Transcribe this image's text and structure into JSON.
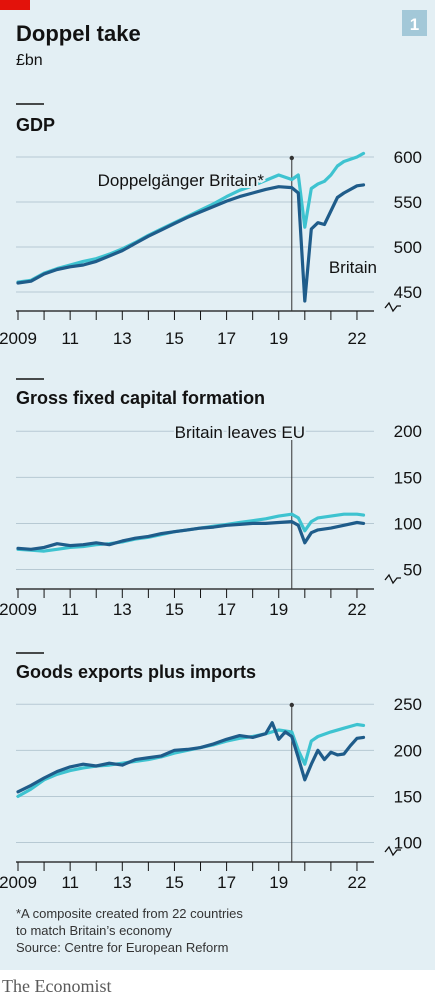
{
  "header": {
    "title": "Doppel take",
    "subtitle": "£bn",
    "chart_number": "1"
  },
  "footnote": {
    "line1": "*A composite created from 22 countries",
    "line2": "to match Britain’s economy",
    "source": "Source: Centre for European Reform"
  },
  "brand": "The Economist",
  "colors": {
    "background": "#e3eff4",
    "britain": "#1f5c8a",
    "doppelganger": "#3ec3d0",
    "grid": "#b7c9d3",
    "accent_red": "#e3120b",
    "number_box": "#a3c8d8"
  },
  "x_ticks": [
    "2009",
    "11",
    "13",
    "15",
    "17",
    "19",
    "22"
  ],
  "chart_data": [
    {
      "type": "line",
      "title": "GDP",
      "x_unit": "year (quarterly)",
      "xlim": [
        2009.0,
        2022.5
      ],
      "ylim": [
        430,
        610
      ],
      "y_ticks": [
        450,
        500,
        550,
        600
      ],
      "y_axis_break": true,
      "annotations": [
        "Doppelgänger Britain*",
        "Britain"
      ],
      "series": [
        {
          "name": "Britain",
          "x": [
            2009.0,
            2009.5,
            2010.0,
            2010.5,
            2011.0,
            2011.5,
            2012.0,
            2012.5,
            2013.0,
            2013.5,
            2014.0,
            2014.5,
            2015.0,
            2015.5,
            2016.0,
            2016.5,
            2017.0,
            2017.5,
            2018.0,
            2018.5,
            2019.0,
            2019.5,
            2019.75,
            2020.0,
            2020.25,
            2020.5,
            2020.75,
            2021.0,
            2021.25,
            2021.5,
            2022.0,
            2022.25
          ],
          "y": [
            460,
            462,
            470,
            475,
            478,
            480,
            484,
            490,
            496,
            504,
            512,
            519,
            526,
            533,
            539,
            545,
            551,
            556,
            560,
            564,
            567,
            566,
            560,
            440,
            520,
            527,
            525,
            540,
            555,
            560,
            568,
            569
          ]
        },
        {
          "name": "Doppelgänger Britain*",
          "x": [
            2009.0,
            2009.5,
            2010.0,
            2010.5,
            2011.0,
            2011.5,
            2012.0,
            2012.5,
            2013.0,
            2013.5,
            2014.0,
            2014.5,
            2015.0,
            2015.5,
            2016.0,
            2016.5,
            2017.0,
            2017.5,
            2018.0,
            2018.5,
            2019.0,
            2019.5,
            2019.75,
            2020.0,
            2020.25,
            2020.5,
            2020.75,
            2021.0,
            2021.25,
            2021.5,
            2022.0,
            2022.25
          ],
          "y": [
            461,
            463,
            471,
            476,
            480,
            484,
            487,
            492,
            498,
            505,
            513,
            520,
            527,
            534,
            541,
            548,
            556,
            563,
            568,
            574,
            580,
            575,
            580,
            522,
            565,
            570,
            573,
            580,
            590,
            595,
            600,
            604
          ]
        }
      ]
    },
    {
      "type": "line",
      "title": "Gross fixed capital formation",
      "x_unit": "year (quarterly)",
      "xlim": [
        2009.0,
        2022.5
      ],
      "ylim": [
        30,
        210
      ],
      "y_ticks": [
        50,
        100,
        150,
        200
      ],
      "y_axis_break": true,
      "annotations": [
        "Britain leaves EU"
      ],
      "series": [
        {
          "name": "Britain",
          "x": [
            2009.0,
            2009.5,
            2010.0,
            2010.5,
            2011.0,
            2011.5,
            2012.0,
            2012.5,
            2013.0,
            2013.5,
            2014.0,
            2014.5,
            2015.0,
            2015.5,
            2016.0,
            2016.5,
            2017.0,
            2017.5,
            2018.0,
            2018.5,
            2019.0,
            2019.5,
            2019.75,
            2020.0,
            2020.25,
            2020.5,
            2021.0,
            2021.5,
            2022.0,
            2022.25
          ],
          "y": [
            73,
            72,
            74,
            78,
            76,
            77,
            79,
            77,
            81,
            84,
            86,
            89,
            91,
            93,
            95,
            96,
            98,
            99,
            100,
            100,
            101,
            102,
            98,
            79,
            90,
            93,
            95,
            98,
            101,
            100
          ]
        },
        {
          "name": "Doppelgänger Britain*",
          "x": [
            2009.0,
            2009.5,
            2010.0,
            2010.5,
            2011.0,
            2011.5,
            2012.0,
            2012.5,
            2013.0,
            2013.5,
            2014.0,
            2014.5,
            2015.0,
            2015.5,
            2016.0,
            2016.5,
            2017.0,
            2017.5,
            2018.0,
            2018.5,
            2019.0,
            2019.5,
            2019.75,
            2020.0,
            2020.25,
            2020.5,
            2021.0,
            2021.5,
            2022.0,
            2022.25
          ],
          "y": [
            72,
            71,
            70,
            72,
            74,
            75,
            77,
            78,
            80,
            83,
            85,
            88,
            91,
            93,
            95,
            97,
            99,
            101,
            103,
            105,
            108,
            110,
            106,
            92,
            102,
            106,
            108,
            110,
            110,
            109
          ]
        }
      ]
    },
    {
      "type": "line",
      "title": "Goods exports plus imports",
      "x_unit": "year (quarterly)",
      "xlim": [
        2009.0,
        2022.5
      ],
      "ylim": [
        80,
        260
      ],
      "y_ticks": [
        100,
        150,
        200,
        250
      ],
      "y_axis_break": true,
      "annotations": [],
      "series": [
        {
          "name": "Britain",
          "x": [
            2009.0,
            2009.5,
            2010.0,
            2010.5,
            2011.0,
            2011.5,
            2012.0,
            2012.5,
            2013.0,
            2013.5,
            2014.0,
            2014.5,
            2015.0,
            2015.5,
            2016.0,
            2016.5,
            2017.0,
            2017.5,
            2018.0,
            2018.5,
            2018.75,
            2019.0,
            2019.25,
            2019.5,
            2019.75,
            2020.0,
            2020.25,
            2020.5,
            2020.75,
            2021.0,
            2021.25,
            2021.5,
            2021.75,
            2022.0,
            2022.25
          ],
          "y": [
            155,
            162,
            170,
            177,
            182,
            185,
            183,
            186,
            184,
            190,
            192,
            194,
            200,
            201,
            203,
            207,
            212,
            216,
            214,
            218,
            230,
            212,
            220,
            215,
            192,
            168,
            185,
            200,
            190,
            198,
            195,
            196,
            205,
            213,
            214
          ]
        },
        {
          "name": "Doppelgänger Britain*",
          "x": [
            2009.0,
            2009.5,
            2010.0,
            2010.5,
            2011.0,
            2011.5,
            2012.0,
            2012.5,
            2013.0,
            2013.5,
            2014.0,
            2014.5,
            2015.0,
            2015.5,
            2016.0,
            2016.5,
            2017.0,
            2017.5,
            2018.0,
            2018.5,
            2019.0,
            2019.5,
            2019.75,
            2020.0,
            2020.25,
            2020.5,
            2021.0,
            2021.5,
            2022.0,
            2022.25
          ],
          "y": [
            150,
            158,
            168,
            174,
            178,
            181,
            183,
            184,
            186,
            188,
            190,
            193,
            197,
            200,
            203,
            206,
            210,
            213,
            215,
            218,
            222,
            220,
            200,
            185,
            210,
            215,
            220,
            224,
            228,
            227
          ]
        }
      ]
    }
  ]
}
